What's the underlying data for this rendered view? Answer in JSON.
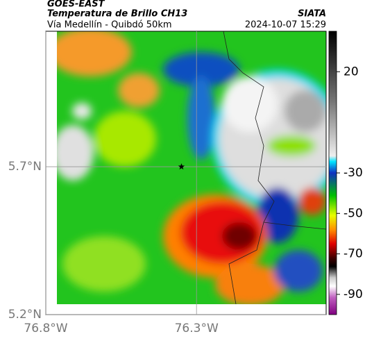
{
  "header": {
    "title": "GOES-EAST",
    "subtitle": "Temperatura de Brillo CH13",
    "source": "SIATA",
    "route": "Vía Medellín - Quibdó 50km",
    "timestamp": "2024-10-07 15:29"
  },
  "map": {
    "xlim": [
      -76.8,
      -75.87
    ],
    "ylim": [
      5.2,
      6.158
    ],
    "xticks": [
      {
        "value": -76.8,
        "label": "76.8°W"
      },
      {
        "value": -76.3,
        "label": "76.3°W"
      }
    ],
    "yticks": [
      {
        "value": 5.2,
        "label": "5.2°N"
      },
      {
        "value": 5.7,
        "label": "5.7°N"
      }
    ],
    "grid": true,
    "marker": {
      "lon": -76.35,
      "lat": 5.7
    }
  },
  "colorbar": {
    "lim": [
      -100,
      40
    ],
    "ticks": [
      20,
      -30,
      -50,
      -70,
      -90
    ]
  }
}
